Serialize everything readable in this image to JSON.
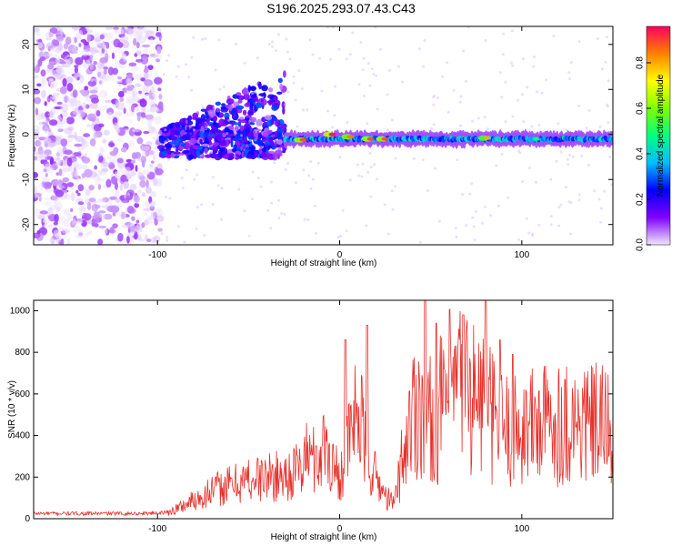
{
  "title": "S196.2025.293.07.43.C43",
  "chart_data": [
    {
      "type": "heatmap",
      "panel": "spectrogram",
      "xlabel": "Height of straight line (km)",
      "ylabel": "Frequency (Hz)",
      "xlim": [
        -168,
        150
      ],
      "ylim": [
        -24.5,
        24
      ],
      "xticks": [
        -100,
        0,
        100
      ],
      "yticks": [
        -20,
        -10,
        0,
        10,
        20
      ],
      "colorbar": {
        "label": "Normalized spectral amplitude",
        "range": [
          0,
          0.96
        ],
        "ticks": [
          0.0,
          0.2,
          0.4,
          0.6,
          0.8
        ],
        "colors": [
          "#f0e8ff",
          "#8000ff",
          "#0000ff",
          "#00bfff",
          "#00ff80",
          "#80ff00",
          "#ffff00",
          "#ff8000",
          "#ff0060"
        ]
      },
      "features": [
        {
          "region": "noise",
          "x_range": [
            -168,
            -98
          ],
          "freq_range": [
            -24,
            24
          ],
          "amplitude_range": [
            0.0,
            0.1
          ]
        },
        {
          "region": "transition",
          "x_range": [
            -98,
            -30
          ],
          "freq_range": [
            -6,
            15
          ],
          "amplitude_range": [
            0.05,
            0.3
          ]
        },
        {
          "region": "carrier",
          "x_range": [
            -30,
            150
          ],
          "center_freq": -1,
          "amplitude_range": [
            0.2,
            0.9
          ]
        }
      ],
      "peaks": [
        {
          "x": -20,
          "freq": -1.2,
          "amplitude": 0.9
        },
        {
          "x": -4,
          "freq": 0,
          "amplitude": 0.95
        },
        {
          "x": 6,
          "freq": -0.5,
          "amplitude": 0.85
        },
        {
          "x": 17,
          "freq": -1,
          "amplitude": 0.9
        },
        {
          "x": 25,
          "freq": -1,
          "amplitude": 0.9
        },
        {
          "x": 81,
          "freq": -0.8,
          "amplitude": 0.8
        },
        {
          "x": 108,
          "freq": -1,
          "amplitude": 0.5
        }
      ]
    },
    {
      "type": "line",
      "panel": "snr",
      "xlabel": "Height of straight line (km)",
      "ylabel": "SNR (10 * v/v)",
      "xlim": [
        -168,
        150
      ],
      "ylim": [
        0,
        1050
      ],
      "xticks": [
        -100,
        0,
        100
      ],
      "yticks": [
        0,
        200,
        400,
        600,
        800,
        1000
      ],
      "line_color": "#e8302a",
      "series": [
        {
          "name": "SNR",
          "x": [
            -168,
            -150,
            -130,
            -110,
            -95,
            -88,
            -80,
            -70,
            -60,
            -50,
            -40,
            -30,
            -22,
            -18,
            -15,
            -12,
            -8,
            -4,
            0,
            5,
            10,
            15,
            20,
            25,
            30,
            33,
            36,
            40,
            45,
            48,
            52,
            56,
            60,
            65,
            70,
            75,
            80,
            85,
            90,
            95,
            100,
            110,
            120,
            130,
            140,
            150
          ],
          "values": [
            25,
            25,
            25,
            25,
            30,
            60,
            100,
            150,
            180,
            210,
            220,
            230,
            260,
            350,
            310,
            330,
            400,
            300,
            220,
            400,
            600,
            320,
            220,
            120,
            80,
            300,
            450,
            650,
            750,
            620,
            600,
            700,
            780,
            820,
            800,
            760,
            700,
            600,
            560,
            530,
            560,
            590,
            600,
            590,
            580,
            560
          ],
          "peaks": [
            {
              "x": -13,
              "y": 350
            },
            {
              "x": 3,
              "y": 860
            },
            {
              "x": 15,
              "y": 930
            },
            {
              "x": 47,
              "y": 1050
            },
            {
              "x": 53,
              "y": 940
            },
            {
              "x": 68,
              "y": 980
            },
            {
              "x": 80,
              "y": 1050
            },
            {
              "x": 88,
              "y": 860
            },
            {
              "x": 95,
              "y": 790
            }
          ]
        }
      ]
    }
  ]
}
